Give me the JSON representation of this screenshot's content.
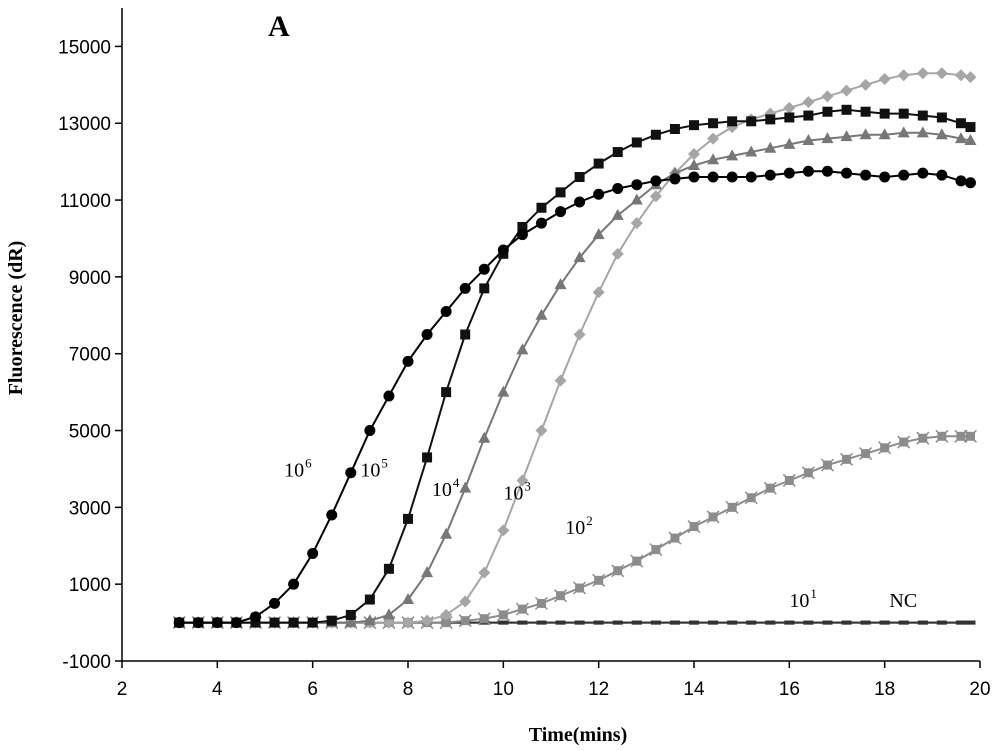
{
  "chart_data": {
    "type": "line",
    "panel_label": "A",
    "xlabel": "Time(mins)",
    "ylabel": "Fluorescence (dR)",
    "xlim": [
      2,
      20
    ],
    "ylim": [
      -1000,
      16000
    ],
    "xticks": [
      2,
      4,
      6,
      8,
      10,
      12,
      14,
      16,
      18,
      20
    ],
    "yticks": [
      -1000,
      1000,
      3000,
      5000,
      7000,
      9000,
      11000,
      13000,
      15000
    ],
    "legend": "none",
    "grid": false,
    "x": [
      3.2,
      3.6,
      4.0,
      4.4,
      4.8,
      5.2,
      5.6,
      6.0,
      6.4,
      6.8,
      7.2,
      7.6,
      8.0,
      8.4,
      8.8,
      9.2,
      9.6,
      10.0,
      10.4,
      10.8,
      11.2,
      11.6,
      12.0,
      12.4,
      12.8,
      13.2,
      13.6,
      14.0,
      14.4,
      14.8,
      15.2,
      15.6,
      16.0,
      16.4,
      16.8,
      17.2,
      17.6,
      18.0,
      18.4,
      18.8,
      19.2,
      19.6,
      19.8
    ],
    "series": [
      {
        "name": "10⁶",
        "label_base": "10",
        "label_exp": "6",
        "marker": "circle",
        "color": "#000000",
        "values": [
          0,
          0,
          0,
          0,
          150,
          500,
          1000,
          1800,
          2800,
          3900,
          5000,
          5900,
          6800,
          7500,
          8100,
          8700,
          9200,
          9700,
          10100,
          10400,
          10700,
          10950,
          11150,
          11300,
          11400,
          11500,
          11550,
          11600,
          11600,
          11600,
          11600,
          11650,
          11700,
          11750,
          11750,
          11700,
          11650,
          11600,
          11650,
          11700,
          11650,
          11500,
          11450
        ]
      },
      {
        "name": "10⁵",
        "label_base": "10",
        "label_exp": "5",
        "marker": "square",
        "color": "#111111",
        "values": [
          0,
          0,
          0,
          0,
          0,
          0,
          0,
          0,
          50,
          200,
          600,
          1400,
          2700,
          4300,
          6000,
          7500,
          8700,
          9600,
          10300,
          10800,
          11200,
          11600,
          11950,
          12250,
          12500,
          12700,
          12850,
          12950,
          13000,
          13050,
          13050,
          13100,
          13150,
          13200,
          13300,
          13350,
          13300,
          13250,
          13250,
          13200,
          13150,
          13000,
          12900
        ]
      },
      {
        "name": "10⁴",
        "label_base": "10",
        "label_exp": "4",
        "marker": "triangle",
        "color": "#777777",
        "values": [
          0,
          0,
          0,
          0,
          0,
          0,
          0,
          0,
          0,
          0,
          50,
          200,
          600,
          1300,
          2300,
          3500,
          4800,
          6000,
          7100,
          8000,
          8800,
          9500,
          10100,
          10600,
          11000,
          11400,
          11700,
          11900,
          12050,
          12150,
          12250,
          12350,
          12450,
          12550,
          12600,
          12650,
          12700,
          12700,
          12750,
          12750,
          12700,
          12600,
          12550
        ]
      },
      {
        "name": "10³",
        "label_base": "10",
        "label_exp": "3",
        "marker": "diamond",
        "color": "#a6a6a6",
        "values": [
          0,
          0,
          0,
          0,
          0,
          0,
          0,
          0,
          0,
          0,
          0,
          0,
          0,
          50,
          200,
          550,
          1300,
          2400,
          3700,
          5000,
          6300,
          7500,
          8600,
          9600,
          10400,
          11100,
          11700,
          12200,
          12600,
          12900,
          13100,
          13250,
          13400,
          13550,
          13700,
          13850,
          14000,
          14150,
          14250,
          14300,
          14300,
          14250,
          14200
        ]
      },
      {
        "name": "10²",
        "label_base": "10",
        "label_exp": "2",
        "marker": "star",
        "color": "#8c8c8c",
        "values": [
          0,
          0,
          0,
          0,
          0,
          0,
          0,
          0,
          0,
          0,
          0,
          0,
          0,
          0,
          0,
          50,
          100,
          200,
          350,
          500,
          700,
          900,
          1100,
          1350,
          1600,
          1900,
          2200,
          2500,
          2750,
          3000,
          3250,
          3500,
          3700,
          3900,
          4100,
          4250,
          4400,
          4550,
          4700,
          4800,
          4850,
          4850,
          4850
        ]
      },
      {
        "name": "10¹",
        "label_base": "10",
        "label_exp": "1",
        "marker": "dash",
        "color": "#555555",
        "values": [
          0,
          0,
          0,
          0,
          0,
          0,
          0,
          0,
          0,
          0,
          0,
          0,
          0,
          0,
          0,
          0,
          0,
          0,
          0,
          0,
          0,
          0,
          0,
          0,
          0,
          0,
          0,
          0,
          0,
          0,
          0,
          0,
          0,
          0,
          0,
          0,
          0,
          0,
          0,
          0,
          0,
          0,
          0
        ]
      },
      {
        "name": "NC",
        "label_base": "NC",
        "label_exp": "",
        "marker": "dash",
        "color": "#333333",
        "values": [
          0,
          0,
          0,
          0,
          0,
          0,
          0,
          0,
          0,
          0,
          0,
          0,
          0,
          0,
          0,
          0,
          0,
          0,
          0,
          0,
          0,
          0,
          0,
          0,
          0,
          0,
          0,
          0,
          0,
          0,
          0,
          0,
          0,
          0,
          0,
          0,
          0,
          0,
          0,
          0,
          0,
          0,
          0
        ]
      }
    ],
    "annotation_positions": {
      "10⁶": [
        5.4,
        3800
      ],
      "10⁵": [
        7.0,
        3800
      ],
      "10⁴": [
        8.5,
        3300
      ],
      "10³": [
        10.0,
        3200
      ],
      "10²": [
        11.3,
        2300
      ],
      "10¹": [
        16.0,
        400
      ],
      "NC": [
        18.1,
        400
      ]
    }
  }
}
